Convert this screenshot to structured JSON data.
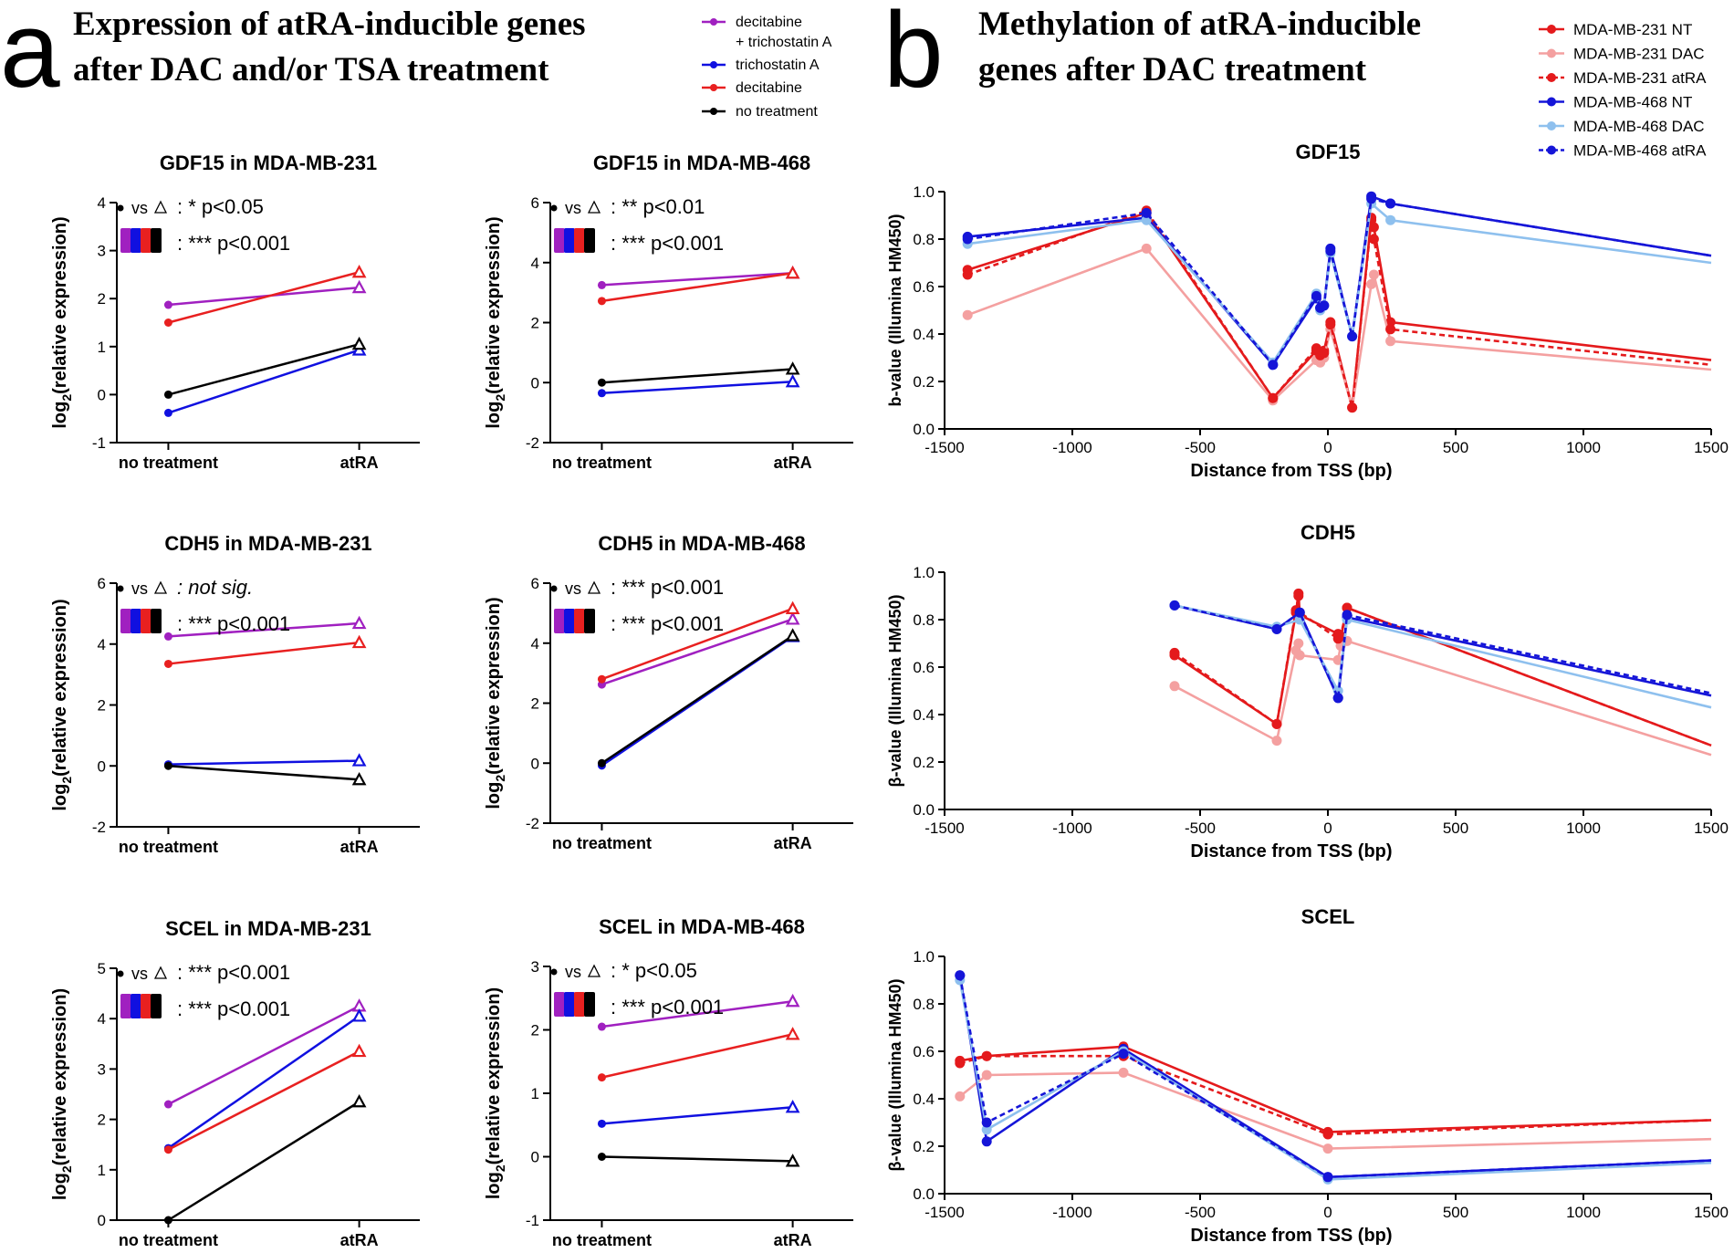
{
  "figure": {
    "panel_a": {
      "letter": "a",
      "title_line1": "Expression of atRA-inducible genes",
      "title_line2": "after DAC and/or TSA treatment",
      "legend": [
        {
          "label": "decitabine",
          "color": "#a020c0"
        },
        {
          "label": "+ trichostatin A",
          "color": ""
        },
        {
          "label": "trichostatin A",
          "color": "#1010e0"
        },
        {
          "label": "decitabine",
          "color": "#e82020"
        },
        {
          "label": "no treatment",
          "color": "#000000"
        }
      ]
    },
    "panel_b": {
      "letter": "b",
      "title_line1": "Methylation of atRA-inducible",
      "title_line2": "genes after DAC treatment",
      "legend": [
        {
          "label": "MDA-MB-231 NT",
          "color": "#e41a1c",
          "style": "solid"
        },
        {
          "label": "MDA-MB-231 DAC",
          "color": "#f4a0a0",
          "style": "solid"
        },
        {
          "label": "MDA-MB-231 atRA",
          "color": "#e41a1c",
          "style": "dash"
        },
        {
          "label": "MDA-MB-468 NT",
          "color": "#1515d8",
          "style": "solid"
        },
        {
          "label": "MDA-MB-468 DAC",
          "color": "#8ec0ee",
          "style": "solid"
        },
        {
          "label": "MDA-MB-468 atRA",
          "color": "#1515d8",
          "style": "dash"
        }
      ]
    }
  },
  "chart_data": [
    {
      "id": "gdf15-231",
      "type": "line",
      "title": "GDF15 in MDA-MB-231",
      "ylabel_main": "log",
      "ylabel_sub": "2",
      "ylabel_rest": "(relative expression)",
      "categories": [
        "no treatment",
        "atRA"
      ],
      "ylim": [
        -1,
        4
      ],
      "yticks": [
        "-1",
        "0",
        "1",
        "2",
        "3",
        "4"
      ],
      "series": [
        {
          "name": "decitabine + trichostatin A",
          "color": "#a020c0",
          "values": [
            1.87,
            2.23
          ]
        },
        {
          "name": "trichostatin A",
          "color": "#1010e0",
          "values": [
            -0.38,
            0.93
          ]
        },
        {
          "name": "decitabine",
          "color": "#e82020",
          "values": [
            1.5,
            2.55
          ]
        },
        {
          "name": "no treatment",
          "color": "#000000",
          "values": [
            0.0,
            1.05
          ]
        }
      ],
      "annotations": [
        {
          "vs": "vs",
          "text": ": * p<0.05"
        },
        {
          "text": ": *** p<0.001"
        }
      ]
    },
    {
      "id": "gdf15-468",
      "type": "line",
      "title": "GDF15 in MDA-MB-468",
      "ylabel_main": "log",
      "ylabel_sub": "2",
      "ylabel_rest": "(relative expression)",
      "categories": [
        "no treatment",
        "atRA"
      ],
      "ylim": [
        -2,
        6
      ],
      "yticks": [
        "-2",
        "0",
        "2",
        "4",
        "6"
      ],
      "series": [
        {
          "name": "decitabine + trichostatin A",
          "color": "#a020c0",
          "values": [
            3.25,
            3.65
          ]
        },
        {
          "name": "trichostatin A",
          "color": "#1010e0",
          "values": [
            -0.35,
            0.03
          ]
        },
        {
          "name": "decitabine",
          "color": "#e82020",
          "values": [
            2.72,
            3.65
          ]
        },
        {
          "name": "no treatment",
          "color": "#000000",
          "values": [
            0.0,
            0.45
          ]
        }
      ],
      "annotations": [
        {
          "vs": "vs",
          "text": ": ** p<0.01"
        },
        {
          "text": ": *** p<0.001"
        }
      ]
    },
    {
      "id": "cdh5-231",
      "type": "line",
      "title": "CDH5 in MDA-MB-231",
      "ylabel_main": "log",
      "ylabel_sub": "2",
      "ylabel_rest": "(relative expression)",
      "categories": [
        "no treatment",
        "atRA"
      ],
      "ylim": [
        -2,
        6
      ],
      "yticks": [
        "-2",
        "0",
        "2",
        "4",
        "6"
      ],
      "series": [
        {
          "name": "decitabine + trichostatin A",
          "color": "#a020c0",
          "values": [
            4.25,
            4.68
          ]
        },
        {
          "name": "trichostatin A",
          "color": "#1010e0",
          "values": [
            0.05,
            0.17
          ]
        },
        {
          "name": "decitabine",
          "color": "#e82020",
          "values": [
            3.35,
            4.05
          ]
        },
        {
          "name": "no treatment",
          "color": "#000000",
          "values": [
            0.0,
            -0.45
          ]
        }
      ],
      "annotations": [
        {
          "vs": "vs",
          "text": ": not sig."
        },
        {
          "text": ": *** p<0.001"
        }
      ]
    },
    {
      "id": "cdh5-468",
      "type": "line",
      "title": "CDH5 in MDA-MB-468",
      "ylabel_main": "log",
      "ylabel_sub": "2",
      "ylabel_rest": "(relative expression)",
      "categories": [
        "no treatment",
        "atRA"
      ],
      "ylim": [
        -2,
        6
      ],
      "yticks": [
        "-2",
        "0",
        "2",
        "4",
        "6"
      ],
      "series": [
        {
          "name": "decitabine + trichostatin A",
          "color": "#a020c0",
          "values": [
            2.62,
            4.8
          ]
        },
        {
          "name": "trichostatin A",
          "color": "#1010e0",
          "values": [
            -0.08,
            4.22
          ]
        },
        {
          "name": "decitabine",
          "color": "#e82020",
          "values": [
            2.8,
            5.15
          ]
        },
        {
          "name": "no treatment",
          "color": "#000000",
          "values": [
            0.0,
            4.25
          ]
        }
      ],
      "annotations": [
        {
          "vs": "vs",
          "text": ": *** p<0.001"
        },
        {
          "text": ": *** p<0.001"
        }
      ]
    },
    {
      "id": "scel-231",
      "type": "line",
      "title": "SCEL in MDA-MB-231",
      "ylabel_main": "log",
      "ylabel_sub": "2",
      "ylabel_rest": "(relative expression)",
      "categories": [
        "no treatment",
        "atRA"
      ],
      "ylim": [
        0,
        5
      ],
      "yticks": [
        "0",
        "1",
        "2",
        "3",
        "4",
        "5"
      ],
      "series": [
        {
          "name": "decitabine + trichostatin A",
          "color": "#a020c0",
          "values": [
            2.3,
            4.25
          ]
        },
        {
          "name": "trichostatin A",
          "color": "#1010e0",
          "values": [
            1.43,
            4.05
          ]
        },
        {
          "name": "decitabine",
          "color": "#e82020",
          "values": [
            1.4,
            3.35
          ]
        },
        {
          "name": "no treatment",
          "color": "#000000",
          "values": [
            0.0,
            2.35
          ]
        }
      ],
      "annotations": [
        {
          "vs": "vs",
          "text": ": *** p<0.001"
        },
        {
          "text": ": *** p<0.001"
        }
      ]
    },
    {
      "id": "scel-468",
      "type": "line",
      "title": "SCEL in MDA-MB-468",
      "ylabel_main": "log",
      "ylabel_sub": "2",
      "ylabel_rest": "(relative expression)",
      "categories": [
        "no treatment",
        "atRA"
      ],
      "ylim": [
        -1,
        3
      ],
      "yticks": [
        "-1",
        "0",
        "1",
        "2",
        "3"
      ],
      "series": [
        {
          "name": "decitabine + trichostatin A",
          "color": "#a020c0",
          "values": [
            2.05,
            2.45
          ]
        },
        {
          "name": "trichostatin A",
          "color": "#1010e0",
          "values": [
            0.52,
            0.78
          ]
        },
        {
          "name": "decitabine",
          "color": "#e82020",
          "values": [
            1.25,
            1.93
          ]
        },
        {
          "name": "no treatment",
          "color": "#000000",
          "values": [
            0.0,
            -0.07
          ]
        }
      ],
      "annotations": [
        {
          "vs": "vs",
          "text": ": * p<0.05"
        },
        {
          "text": ": *** p<0.001"
        }
      ]
    },
    {
      "id": "meth-gdf15",
      "type": "line",
      "title": "GDF15",
      "xlabel": "Distance from TSS (bp)",
      "ylabel": "b-value (Illumina HM450)",
      "xlim": [
        -1500,
        1500
      ],
      "ylim": [
        0,
        1
      ],
      "xticks": [
        "-1500",
        "-1000",
        "-500",
        "0",
        "500",
        "1000",
        "1500"
      ],
      "yticks": [
        "0.0",
        "0.2",
        "0.4",
        "0.6",
        "0.8",
        "1.0"
      ],
      "series": [
        {
          "name": "MDA-MB-231 NT",
          "color": "#e41a1c",
          "style": "solid",
          "x": [
            -1410,
            -710,
            -215,
            -45,
            -30,
            -15,
            10,
            95,
            170,
            180,
            245,
            1500
          ],
          "values": [
            0.67,
            0.91,
            0.13,
            0.33,
            0.32,
            0.33,
            0.45,
            0.09,
            0.89,
            0.85,
            0.45,
            0.29
          ]
        },
        {
          "name": "MDA-MB-231 DAC",
          "color": "#f4a0a0",
          "style": "solid",
          "x": [
            -1410,
            -710,
            -215,
            -45,
            -30,
            -15,
            10,
            95,
            170,
            180,
            245,
            1500
          ],
          "values": [
            0.48,
            0.76,
            0.12,
            0.29,
            0.28,
            0.3,
            0.42,
            0.09,
            0.61,
            0.65,
            0.37,
            0.25
          ]
        },
        {
          "name": "MDA-MB-231 atRA",
          "color": "#e41a1c",
          "style": "dash",
          "x": [
            -1410,
            -710,
            -215,
            -45,
            -30,
            -15,
            10,
            95,
            170,
            180,
            245,
            1500
          ],
          "values": [
            0.65,
            0.92,
            0.13,
            0.34,
            0.31,
            0.32,
            0.44,
            0.09,
            0.88,
            0.8,
            0.42,
            0.27
          ]
        },
        {
          "name": "MDA-MB-468 NT",
          "color": "#1515d8",
          "style": "solid",
          "x": [
            -1410,
            -710,
            -215,
            -45,
            -30,
            -15,
            10,
            95,
            170,
            245,
            1500
          ],
          "values": [
            0.81,
            0.89,
            0.27,
            0.55,
            0.51,
            0.52,
            0.76,
            0.39,
            0.98,
            0.95,
            0.73
          ]
        },
        {
          "name": "MDA-MB-468 DAC",
          "color": "#8ec0ee",
          "style": "solid",
          "x": [
            -1410,
            -710,
            -215,
            -45,
            -30,
            -15,
            10,
            95,
            170,
            245,
            1500
          ],
          "values": [
            0.78,
            0.88,
            0.28,
            0.57,
            0.5,
            0.52,
            0.74,
            0.39,
            0.95,
            0.88,
            0.7
          ]
        },
        {
          "name": "MDA-MB-468 atRA",
          "color": "#1515d8",
          "style": "dash",
          "x": [
            -1410,
            -710,
            -215,
            -45,
            -30,
            -15,
            10,
            95,
            170,
            245,
            1500
          ],
          "values": [
            0.8,
            0.91,
            0.27,
            0.56,
            0.51,
            0.52,
            0.75,
            0.39,
            0.97,
            0.95,
            0.73
          ]
        }
      ]
    },
    {
      "id": "meth-cdh5",
      "type": "line",
      "title": "CDH5",
      "xlabel": "Distance from TSS (bp)",
      "ylabel": "β-value (Illumina HM450)",
      "xlim": [
        -1500,
        1500
      ],
      "ylim": [
        0,
        1
      ],
      "xticks": [
        "-1500",
        "-1000",
        "-500",
        "0",
        "500",
        "1000",
        "1500"
      ],
      "yticks": [
        "0.0",
        "0.2",
        "0.4",
        "0.6",
        "0.8",
        "1.0"
      ],
      "series": [
        {
          "name": "MDA-MB-231 NT",
          "color": "#e41a1c",
          "style": "solid",
          "x": [
            -600,
            -200,
            -125,
            -115,
            -110,
            40,
            50,
            75,
            1500
          ],
          "values": [
            0.65,
            0.36,
            0.83,
            0.91,
            0.82,
            0.74,
            0.72,
            0.85,
            0.27
          ]
        },
        {
          "name": "MDA-MB-231 DAC",
          "color": "#f4a0a0",
          "style": "solid",
          "x": [
            -600,
            -200,
            -125,
            -115,
            -110,
            40,
            50,
            75,
            1500
          ],
          "values": [
            0.52,
            0.29,
            0.67,
            0.7,
            0.65,
            0.63,
            0.69,
            0.71,
            0.23
          ]
        },
        {
          "name": "MDA-MB-231 atRA",
          "color": "#e41a1c",
          "style": "dash",
          "x": [
            -600,
            -200,
            -125,
            -115,
            -110,
            40,
            50,
            75,
            1500
          ],
          "values": [
            0.66,
            0.36,
            0.84,
            0.9,
            0.83,
            0.72,
            0.73,
            0.85,
            0.27
          ]
        },
        {
          "name": "MDA-MB-468 NT",
          "color": "#1515d8",
          "style": "solid",
          "x": [
            -600,
            -200,
            -110,
            40,
            75,
            1500
          ],
          "values": [
            0.86,
            0.76,
            0.83,
            0.47,
            0.81,
            0.48
          ]
        },
        {
          "name": "MDA-MB-468 DAC",
          "color": "#8ec0ee",
          "style": "solid",
          "x": [
            -600,
            -200,
            -110,
            40,
            75,
            1500
          ],
          "values": [
            0.86,
            0.77,
            0.8,
            0.5,
            0.8,
            0.43
          ]
        },
        {
          "name": "MDA-MB-468 atRA",
          "color": "#1515d8",
          "style": "dash",
          "x": [
            -600,
            -200,
            -110,
            40,
            75,
            1500
          ],
          "values": [
            0.86,
            0.76,
            0.83,
            0.47,
            0.82,
            0.49
          ]
        }
      ]
    },
    {
      "id": "meth-scel",
      "type": "line",
      "title": "SCEL",
      "xlabel": "Distance from TSS (bp)",
      "ylabel": "β-value (Illumina HM450)",
      "xlim": [
        -1500,
        1500
      ],
      "ylim": [
        0,
        1
      ],
      "xticks": [
        "-1500",
        "-1000",
        "-500",
        "0",
        "500",
        "1000",
        "1500"
      ],
      "yticks": [
        "0.0",
        "0.2",
        "0.4",
        "0.6",
        "0.8",
        "1.0"
      ],
      "series": [
        {
          "name": "MDA-MB-231 NT",
          "color": "#e41a1c",
          "style": "solid",
          "x": [
            -1440,
            -1335,
            -800,
            0,
            1500
          ],
          "values": [
            0.56,
            0.58,
            0.62,
            0.26,
            0.31
          ]
        },
        {
          "name": "MDA-MB-231 DAC",
          "color": "#f4a0a0",
          "style": "solid",
          "x": [
            -1440,
            -1335,
            -800,
            0,
            1500
          ],
          "values": [
            0.41,
            0.5,
            0.51,
            0.19,
            0.23
          ]
        },
        {
          "name": "MDA-MB-231 atRA",
          "color": "#e41a1c",
          "style": "dash",
          "x": [
            -1440,
            -1335,
            -800,
            0,
            1500
          ],
          "values": [
            0.55,
            0.58,
            0.58,
            0.25,
            0.31
          ]
        },
        {
          "name": "MDA-MB-468 NT",
          "color": "#1515d8",
          "style": "solid",
          "x": [
            -1440,
            -1335,
            -800,
            0,
            1500
          ],
          "values": [
            0.92,
            0.22,
            0.61,
            0.07,
            0.14
          ]
        },
        {
          "name": "MDA-MB-468 DAC",
          "color": "#8ec0ee",
          "style": "solid",
          "x": [
            -1440,
            -1335,
            -800,
            0,
            1500
          ],
          "values": [
            0.9,
            0.27,
            0.6,
            0.06,
            0.13
          ]
        },
        {
          "name": "MDA-MB-468 atRA",
          "color": "#1515d8",
          "style": "dash",
          "x": [
            -1440,
            -1335,
            -800,
            0,
            1500
          ],
          "values": [
            0.92,
            0.3,
            0.59,
            0.07,
            0.14
          ]
        }
      ]
    }
  ]
}
